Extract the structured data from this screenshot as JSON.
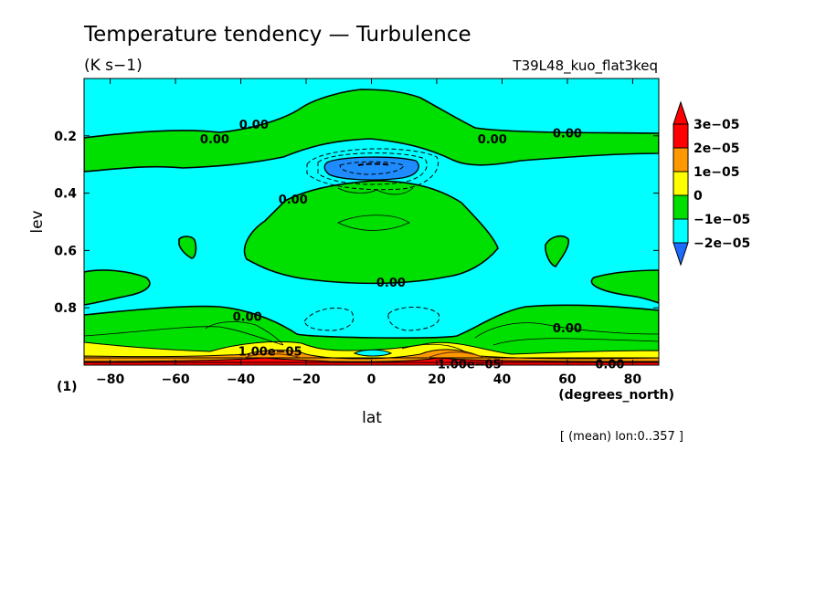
{
  "figure": {
    "title": "Temperature tendency — Turbulence",
    "units": "(K s−1)",
    "run_id": "T39L48_kuo_flat3keq",
    "panel_label": "(1)",
    "footer": "[ (mean) lon:0..357 ]"
  },
  "chart_data": {
    "type": "contour",
    "xlabel": "lat",
    "xunits": "(degrees_north)",
    "ylabel": "lev",
    "xlim": [
      -88,
      88
    ],
    "ylim": [
      1.0,
      0.0
    ],
    "x_ticks": [
      -80,
      -60,
      -40,
      -20,
      0,
      20,
      40,
      60,
      80
    ],
    "x_tick_labels": [
      "−80",
      "−60",
      "−40",
      "−20",
      "0",
      "20",
      "40",
      "60",
      "80"
    ],
    "y_ticks": [
      0.2,
      0.4,
      0.6,
      0.8
    ],
    "y_tick_labels": [
      "0.2",
      "0.4",
      "0.6",
      "0.8"
    ],
    "colorbar": {
      "levels": [
        -2e-05,
        -1e-05,
        0,
        1e-05,
        2e-05,
        3e-05
      ],
      "labels": [
        "−2e−05",
        "−1e−05",
        "0",
        "1e−05",
        "2e−05",
        "3e−05"
      ],
      "colors": [
        "#1e8cff",
        "#00ffff",
        "#00e000",
        "#ffff00",
        "#ff9900",
        "#ff0000"
      ],
      "under_color": "#1e6cff",
      "over_color": "#ff0000"
    },
    "contour_labels": [
      {
        "text": "0.00",
        "x": -36,
        "lev": 0.16
      },
      {
        "text": "0.00",
        "x": -48,
        "lev": 0.21
      },
      {
        "text": "0.00",
        "x": 60,
        "lev": 0.19
      },
      {
        "text": "0.00",
        "x": 37,
        "lev": 0.21
      },
      {
        "text": "0.00",
        "x": -24,
        "lev": 0.42
      },
      {
        "text": "0.00",
        "x": 6,
        "lev": 0.71
      },
      {
        "text": "0.00",
        "x": -38,
        "lev": 0.83
      },
      {
        "text": "0.00",
        "x": 60,
        "lev": 0.87
      },
      {
        "text": "1.00e−05",
        "x": -31,
        "lev": 0.95
      },
      {
        "text": "1.00e−05",
        "x": 30,
        "lev": 0.995
      },
      {
        "text": "0.00",
        "x": 73,
        "lev": 0.995
      }
    ]
  }
}
